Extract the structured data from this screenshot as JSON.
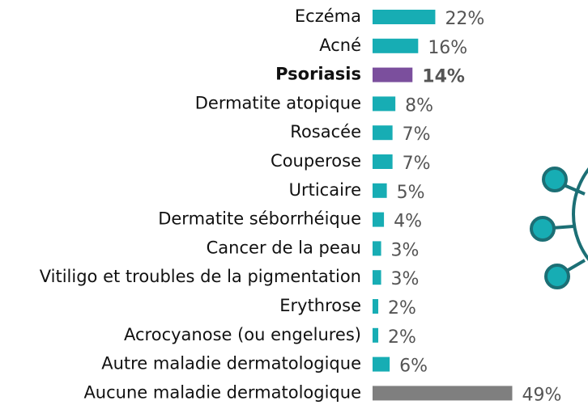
{
  "chart_data": {
    "type": "bar",
    "orientation": "horizontal",
    "categories": [
      "Eczéma",
      "Acné",
      "Psoriasis",
      "Dermatite atopique",
      "Rosacée",
      "Couperose",
      "Urticaire",
      "Dermatite séborrhéique",
      "Cancer de la peau",
      "Vitiligo et troubles de la pigmentation",
      "Erythrose",
      "Acrocyanose (ou engelures)",
      "Autre maladie dermatologique",
      "Aucune maladie dermatologique"
    ],
    "values": [
      22,
      16,
      14,
      8,
      7,
      7,
      5,
      4,
      3,
      3,
      2,
      2,
      6,
      49
    ],
    "value_labels": [
      "22%",
      "16%",
      "14%",
      "8%",
      "7%",
      "7%",
      "5%",
      "4%",
      "3%",
      "3%",
      "2%",
      "2%",
      "6%",
      "49%"
    ],
    "colors": [
      "#17adb4",
      "#17adb4",
      "#7b4f9d",
      "#17adb4",
      "#17adb4",
      "#17adb4",
      "#17adb4",
      "#17adb4",
      "#17adb4",
      "#17adb4",
      "#17adb4",
      "#17adb4",
      "#17adb4",
      "#7f7f7f"
    ],
    "highlight": 2
  }
}
